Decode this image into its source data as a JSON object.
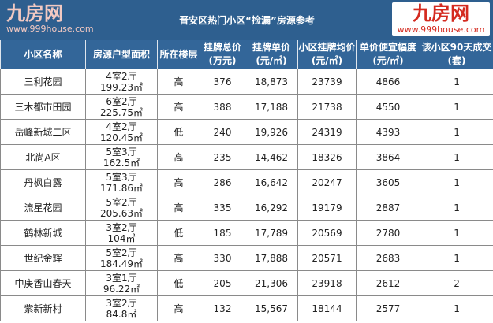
{
  "title": "晋安区热门小区“捡漏”房源参考",
  "headers": [
    "小区名称",
    "房源户型面积",
    "所在楼层",
    "挂牌总价\n(万元)",
    "挂牌单价\n(元/㎡)",
    "小区挂牌均价\n(元/㎡)",
    "单价便宜幅度\n(元/㎡)",
    "该小区90天成交\n(套)"
  ],
  "rows": [
    [
      "三利花园",
      "4室2厅",
      "199.23㎡",
      "高",
      "376",
      "18,873",
      "23739",
      "4866",
      "1"
    ],
    [
      "三木都市田园",
      "6室2厅",
      "225.75㎡",
      "高",
      "388",
      "17,188",
      "21738",
      "4550",
      "1"
    ],
    [
      "岳峰新城二区",
      "4室2厅",
      "120.45㎡",
      "低",
      "240",
      "19,926",
      "24319",
      "4393",
      "1"
    ],
    [
      "北尚A区",
      "5室3厅",
      "162.5㎡",
      "高",
      "235",
      "14,462",
      "18326",
      "3864",
      "1"
    ],
    [
      "丹枫白露",
      "5室3厅",
      "171.86㎡",
      "高",
      "286",
      "16,642",
      "20247",
      "3605",
      "1"
    ],
    [
      "流星花园",
      "5室2厅",
      "205.63㎡",
      "高",
      "335",
      "16,292",
      "19179",
      "2887",
      "1"
    ],
    [
      "鹤林新城",
      "3室2厅",
      "104㎡",
      "低",
      "185",
      "17,789",
      "20569",
      "2780",
      "1"
    ],
    [
      "世纪金辉",
      "5室2厅",
      "184.49㎡",
      "高",
      "330",
      "17,888",
      "20571",
      "2683",
      "1"
    ],
    [
      "中庚香山春天",
      "3室1厅",
      "96.22㎡",
      "低",
      "205",
      "21,306",
      "23918",
      "2612",
      "2"
    ],
    [
      "紫新新村",
      "3室2厅",
      "84.8㎡",
      "高",
      "132",
      "15,567",
      "18144",
      "2577",
      "1"
    ]
  ],
  "watermark": {
    "brand": "九房网",
    "url": "www.999house.com"
  },
  "colors": {
    "title_bg": "#2e5f8f",
    "header_bg": "#336699",
    "logo": "#d42a1f"
  }
}
